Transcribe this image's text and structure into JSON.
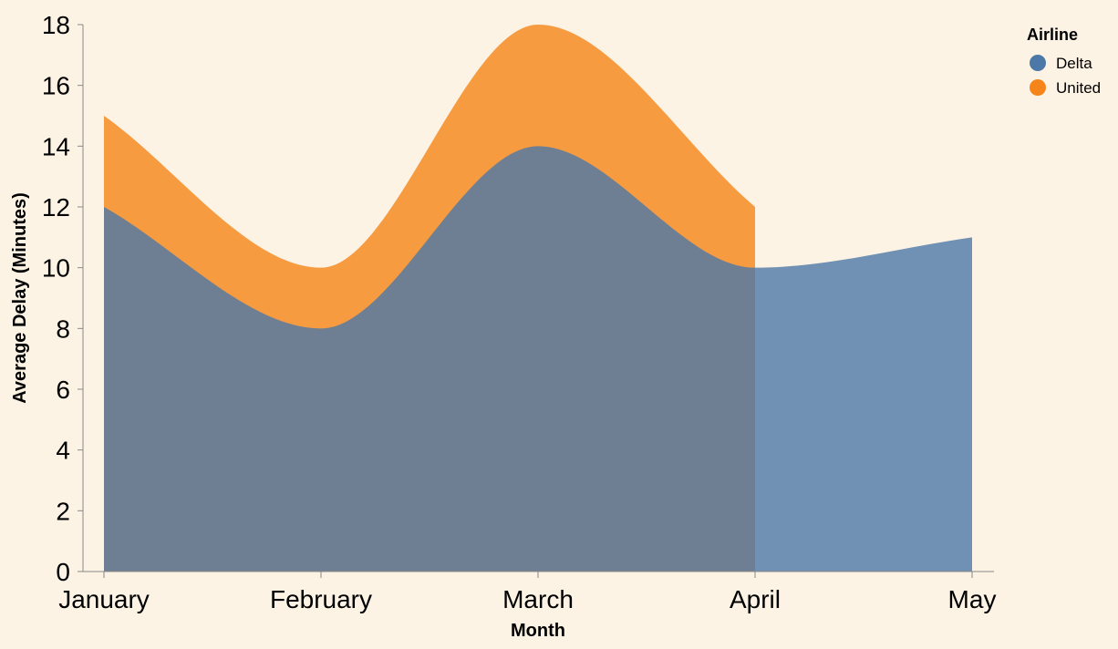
{
  "chart_data": {
    "type": "area",
    "x": [
      "January",
      "February",
      "March",
      "April",
      "May"
    ],
    "series": [
      {
        "name": "Delta",
        "values": [
          12,
          8,
          14,
          10,
          11
        ],
        "color": "#4c78a8"
      },
      {
        "name": "United",
        "values": [
          15,
          10,
          18,
          12,
          null
        ],
        "color": "#f58518"
      }
    ],
    "xlabel": "Month",
    "ylabel": "Average Delay (Minutes)",
    "ylim": [
      0,
      18
    ],
    "yticks": [
      0,
      2,
      4,
      6,
      8,
      10,
      12,
      14,
      16,
      18
    ],
    "grid": false,
    "stacked": false,
    "area_opacity": 0.8,
    "interpolation": "monotone",
    "legend": {
      "title": "Airline",
      "position": "top-right"
    },
    "background": "#fdf3e4"
  }
}
